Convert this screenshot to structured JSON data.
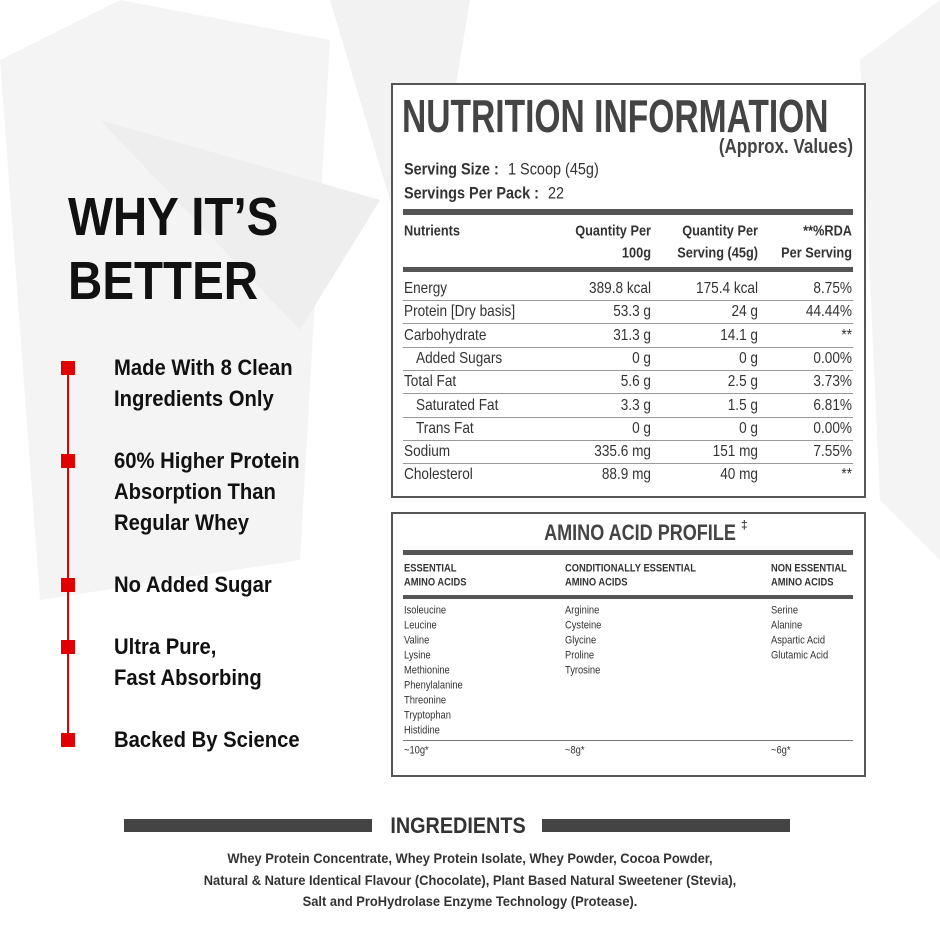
{
  "why": {
    "title_lines": [
      "WHY IT’S",
      "BETTER"
    ],
    "items": [
      [
        "Made With 8 Clean",
        "Ingredients Only"
      ],
      [
        "60% Higher Protein",
        "Absorption Than",
        "Regular Whey"
      ],
      [
        "No Added Sugar"
      ],
      [
        "Ultra Pure,",
        "Fast Absorbing"
      ],
      [
        "Backed By Science"
      ]
    ]
  },
  "nutrition": {
    "title": "NUTRITION INFORMATION",
    "subtitle": "(Approx. Values)",
    "serving_size_label": "Serving Size :",
    "serving_size": "1 Scoop (45g)",
    "servings_label": "Servings Per Pack :",
    "servings": "22",
    "columns": [
      [
        "Nutrients"
      ],
      [
        "Quantity Per",
        "100g"
      ],
      [
        "Quantity Per",
        "Serving (45g)"
      ],
      [
        "**%RDA",
        "Per Serving"
      ]
    ],
    "rows": [
      {
        "name": "Energy",
        "per_100g": "389.8 kcal",
        "per_serving": "175.4 kcal",
        "rda": "8.75%",
        "indent": false
      },
      {
        "name": "Protein [Dry basis]",
        "per_100g": "53.3 g",
        "per_serving": "24 g",
        "rda": "44.44%",
        "indent": false
      },
      {
        "name": "Carbohydrate",
        "per_100g": "31.3 g",
        "per_serving": "14.1 g",
        "rda": "**",
        "indent": false
      },
      {
        "name": "Added Sugars",
        "per_100g": "0 g",
        "per_serving": "0 g",
        "rda": "0.00%",
        "indent": true
      },
      {
        "name": "Total Fat",
        "per_100g": "5.6 g",
        "per_serving": "2.5 g",
        "rda": "3.73%",
        "indent": false
      },
      {
        "name": "Saturated Fat",
        "per_100g": "3.3 g",
        "per_serving": "1.5 g",
        "rda": "6.81%",
        "indent": true
      },
      {
        "name": "Trans Fat",
        "per_100g": "0 g",
        "per_serving": "0 g",
        "rda": "0.00%",
        "indent": true
      },
      {
        "name": "Sodium",
        "per_100g": "335.6 mg",
        "per_serving": "151 mg",
        "rda": "7.55%",
        "indent": false
      },
      {
        "name": "Cholesterol",
        "per_100g": "88.9 mg",
        "per_serving": "40 mg",
        "rda": "**",
        "indent": false
      }
    ]
  },
  "amino": {
    "title": "AMINO ACID PROFILE",
    "title_mark": "‡",
    "columns": [
      {
        "heading": [
          "ESSENTIAL",
          "AMINO ACIDS"
        ],
        "items": [
          "Isoleucine",
          "Leucine",
          "Valine",
          "Lysine",
          "Methionine",
          "Phenylalanine",
          "Threonine",
          "Tryptophan",
          "Histidine"
        ],
        "total": "~10g*"
      },
      {
        "heading": [
          "CONDITIONALLY  ESSENTIAL",
          "AMINO ACIDS"
        ],
        "items": [
          "Arginine",
          "Cysteine",
          "Glycine",
          "Proline",
          "Tyrosine"
        ],
        "total": "~8g*"
      },
      {
        "heading": [
          "NON ESSENTIAL",
          "AMINO ACIDS"
        ],
        "items": [
          "Serine",
          "Alanine",
          "Aspartic Acid",
          "Glutamic Acid"
        ],
        "total": "~6g*"
      }
    ]
  },
  "ingredients": {
    "title": "INGREDIENTS",
    "lines": [
      "Whey Protein Concentrate, Whey Protein Isolate, Whey Powder, Cocoa Powder,",
      "Natural & Nature Identical Flavour (Chocolate), Plant Based Natural Sweetener (Stevia),",
      "Salt and ProHydrolase Enzyme Technology (Protease)."
    ]
  }
}
